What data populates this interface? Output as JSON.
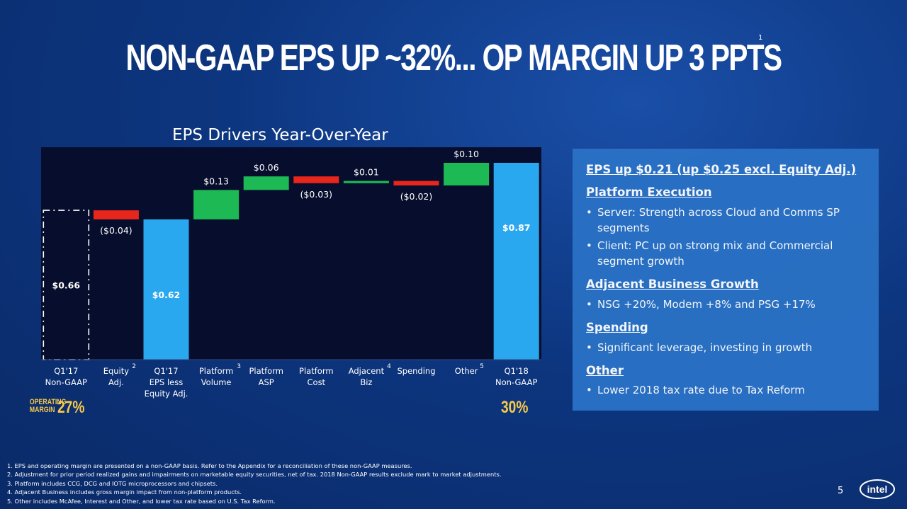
{
  "title": "NON-GAAP EPS UP ~32%... OP MARGIN UP 3 PPTS",
  "title_footnote": "1",
  "chart_data": {
    "type": "waterfall",
    "title": "EPS Drivers Year-Over-Year",
    "ylim": [
      0,
      0.95
    ],
    "steps": [
      {
        "id": "q117",
        "label_lines": [
          "Q1'17",
          "Non-GAAP"
        ],
        "sup": "",
        "kind": "dashed-total",
        "value": 0.66,
        "value_label": "$0.66"
      },
      {
        "id": "equity",
        "label_lines": [
          "Equity",
          "Adj."
        ],
        "sup": "2",
        "kind": "decrease",
        "value": -0.04,
        "value_label": "($0.04)"
      },
      {
        "id": "q117less",
        "label_lines": [
          "Q1'17",
          "EPS less",
          "Equity Adj."
        ],
        "sup": "",
        "kind": "total",
        "value": 0.62,
        "value_label": "$0.62"
      },
      {
        "id": "pvol",
        "label_lines": [
          "Platform",
          "Volume"
        ],
        "sup": "3",
        "kind": "increase",
        "value": 0.13,
        "value_label": "$0.13"
      },
      {
        "id": "pasp",
        "label_lines": [
          "Platform",
          "ASP"
        ],
        "sup": "",
        "kind": "increase",
        "value": 0.06,
        "value_label": "$0.06"
      },
      {
        "id": "pcost",
        "label_lines": [
          "Platform",
          "Cost"
        ],
        "sup": "",
        "kind": "decrease",
        "value": -0.03,
        "value_label": "($0.03)"
      },
      {
        "id": "adj",
        "label_lines": [
          "Adjacent",
          "Biz"
        ],
        "sup": "4",
        "kind": "increase",
        "value": 0.01,
        "value_label": "$0.01"
      },
      {
        "id": "spend",
        "label_lines": [
          "Spending"
        ],
        "sup": "",
        "kind": "decrease",
        "value": -0.02,
        "value_label": "($0.02)"
      },
      {
        "id": "other",
        "label_lines": [
          "Other"
        ],
        "sup": "5",
        "kind": "increase",
        "value": 0.1,
        "value_label": "$0.10"
      },
      {
        "id": "q118",
        "label_lines": [
          "Q1'18",
          "Non-GAAP"
        ],
        "sup": "",
        "kind": "total",
        "value": 0.87,
        "value_label": "$0.87"
      }
    ],
    "operating_margin": {
      "label_line1": "OPERATING",
      "label_line2": "MARGIN",
      "start": "27%",
      "end": "30%"
    }
  },
  "colors": {
    "increase": "#1db954",
    "decrease": "#e8261c",
    "total": "#29a8f0",
    "plot_bg": "#070d2c",
    "panel": "#2a72c6",
    "accent": "#f7c948"
  },
  "panel": {
    "headline": "EPS up $0.21 (up $0.25 excl. Equity Adj.)",
    "sections": [
      {
        "heading": "Platform Execution",
        "bullets": [
          "Server: Strength across Cloud and Comms SP segments",
          "Client: PC up on strong mix and Commercial segment growth"
        ]
      },
      {
        "heading": "Adjacent Business Growth",
        "bullets": [
          "NSG +20%, Modem +8% and PSG +17%"
        ]
      },
      {
        "heading": "Spending",
        "bullets": [
          "Significant leverage, investing in growth"
        ]
      },
      {
        "heading": "Other",
        "bullets": [
          "Lower 2018 tax rate due to Tax Reform"
        ]
      }
    ]
  },
  "footnotes": [
    "1. EPS and operating margin are presented on a non-GAAP basis. Refer to the Appendix for a reconciliation of these non-GAAP measures.",
    "2. Adjustment for prior period realized gains and impairments on marketable equity securities, net of tax. 2018 Non-GAAP results exclude mark to market adjustments.",
    "3. Platform includes CCG, DCG and IOTG microprocessors and chipsets.",
    "4. Adjacent Business includes gross margin impact from non-platform products.",
    "5. Other includes McAfee, Interest and Other, and lower tax rate based on U.S. Tax Reform."
  ],
  "page_number": "5",
  "logo_text": "intel"
}
